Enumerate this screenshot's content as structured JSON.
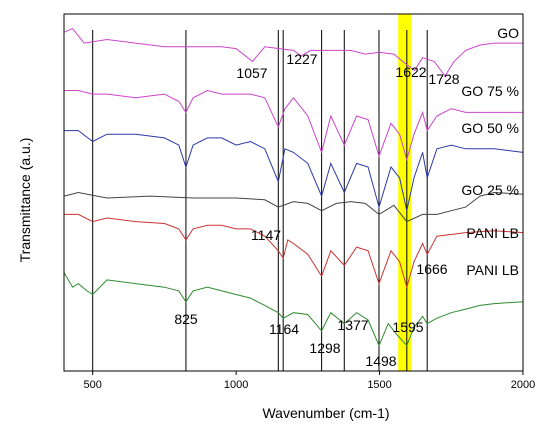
{
  "chart_data": {
    "type": "line",
    "xlabel": "Wavenumber (cm-1)",
    "ylabel": "Transmittance (a.u.)",
    "xlim": [
      400,
      2000
    ],
    "x_ticks": [
      500,
      1000,
      1500,
      2000
    ],
    "x_tick_labels": [
      "500",
      "1000",
      "1500",
      "2000"
    ],
    "y_ticks_shown": false,
    "grid": false,
    "highlight_band": {
      "x_range": [
        1565,
        1610
      ],
      "color": "#ffff00"
    },
    "reference_lines": [
      500,
      825,
      1147,
      1164,
      1298,
      1377,
      1498,
      1595,
      1666
    ],
    "series": [
      {
        "name": "GO",
        "color": "#cc44cc",
        "x": [
          400,
          430,
          470,
          550,
          650,
          750,
          850,
          950,
          1000,
          1057,
          1100,
          1150,
          1200,
          1227,
          1260,
          1300,
          1350,
          1400,
          1450,
          1500,
          1550,
          1580,
          1622,
          1650,
          1690,
          1728,
          1760,
          1800,
          1850,
          1900,
          1950,
          2000
        ],
        "y": [
          8.3,
          8.4,
          8.0,
          8.1,
          8.0,
          7.9,
          7.9,
          7.9,
          7.85,
          7.5,
          7.9,
          7.85,
          7.8,
          7.65,
          7.8,
          7.8,
          7.8,
          7.8,
          7.7,
          7.75,
          7.7,
          7.5,
          7.25,
          7.6,
          7.5,
          7.1,
          7.5,
          7.8,
          7.95,
          8.0,
          8.0,
          8.0
        ]
      },
      {
        "name": "GO 75 %",
        "color": "#cc44cc",
        "x": [
          400,
          450,
          500,
          550,
          650,
          750,
          800,
          825,
          850,
          900,
          950,
          1000,
          1050,
          1100,
          1147,
          1170,
          1200,
          1250,
          1298,
          1330,
          1377,
          1420,
          1460,
          1498,
          1540,
          1570,
          1595,
          1620,
          1650,
          1666,
          1700,
          1750,
          1800,
          1900,
          2000
        ],
        "y": [
          6.7,
          6.7,
          6.6,
          6.6,
          6.5,
          6.6,
          6.4,
          6.1,
          6.5,
          6.7,
          6.6,
          6.6,
          6.6,
          6.5,
          5.7,
          6.2,
          6.5,
          6.0,
          5.0,
          6.0,
          5.2,
          6.0,
          5.9,
          4.9,
          5.8,
          5.5,
          4.8,
          5.5,
          6.1,
          5.6,
          6.0,
          6.2,
          6.1,
          6.1,
          6.1
        ]
      },
      {
        "name": "GO 50 %",
        "color": "#2b3aa8",
        "x": [
          400,
          450,
          500,
          550,
          650,
          750,
          800,
          825,
          850,
          900,
          950,
          1000,
          1050,
          1100,
          1147,
          1170,
          1200,
          1250,
          1298,
          1330,
          1377,
          1420,
          1460,
          1498,
          1540,
          1570,
          1595,
          1620,
          1650,
          1666,
          1700,
          1750,
          1800,
          1900,
          2000
        ],
        "y": [
          5.6,
          5.6,
          5.3,
          5.5,
          5.5,
          5.4,
          5.2,
          4.6,
          5.2,
          5.4,
          5.4,
          5.2,
          5.3,
          5.1,
          4.2,
          5.1,
          5.0,
          4.7,
          3.8,
          4.7,
          3.9,
          4.7,
          4.6,
          3.5,
          4.6,
          4.3,
          3.4,
          4.3,
          5.0,
          4.3,
          5.1,
          5.2,
          5.1,
          5.1,
          5.0
        ]
      },
      {
        "name": "GO 25 %",
        "color": "#444444",
        "x": [
          400,
          450,
          550,
          700,
          850,
          1000,
          1100,
          1147,
          1200,
          1250,
          1298,
          1350,
          1400,
          1450,
          1498,
          1550,
          1595,
          1650,
          1700,
          1750,
          1800,
          1850,
          1900,
          2000
        ],
        "y": [
          3.8,
          3.9,
          3.75,
          3.8,
          3.75,
          3.75,
          3.7,
          3.5,
          3.65,
          3.6,
          3.4,
          3.6,
          3.65,
          3.6,
          3.3,
          3.55,
          3.1,
          3.3,
          3.3,
          3.4,
          3.5,
          3.8,
          3.9,
          3.85
        ]
      },
      {
        "name": "PANI LB",
        "color": "#cc3333",
        "x": [
          400,
          450,
          500,
          550,
          650,
          750,
          800,
          825,
          850,
          900,
          950,
          1000,
          1050,
          1100,
          1147,
          1164,
          1180,
          1200,
          1250,
          1298,
          1330,
          1377,
          1420,
          1460,
          1498,
          1540,
          1570,
          1595,
          1620,
          1650,
          1666,
          1700,
          1800,
          1900,
          2000
        ],
        "y": [
          3.3,
          3.3,
          3.1,
          3.2,
          3.1,
          3.05,
          2.9,
          2.6,
          2.9,
          3.0,
          3.0,
          2.9,
          2.9,
          2.7,
          2.3,
          2.1,
          2.6,
          2.5,
          2.2,
          1.6,
          2.3,
          1.9,
          2.4,
          2.3,
          1.4,
          2.3,
          2.0,
          1.3,
          2.0,
          2.5,
          2.2,
          2.7,
          2.8,
          2.85,
          2.8
        ]
      },
      {
        "name": "PANI LB",
        "color": "#2e8b2e",
        "x": [
          400,
          430,
          450,
          480,
          500,
          550,
          650,
          750,
          800,
          825,
          850,
          900,
          950,
          1000,
          1050,
          1100,
          1147,
          1164,
          1200,
          1250,
          1298,
          1330,
          1377,
          1420,
          1460,
          1498,
          1530,
          1560,
          1595,
          1620,
          1650,
          1666,
          1700,
          1750,
          1800,
          1850,
          1900,
          2000
        ],
        "y": [
          1.7,
          1.3,
          1.4,
          1.2,
          1.1,
          1.5,
          1.4,
          1.3,
          1.2,
          0.9,
          1.2,
          1.3,
          1.2,
          1.1,
          1.0,
          0.8,
          0.6,
          0.45,
          0.6,
          0.55,
          0.1,
          0.6,
          0.3,
          0.6,
          0.4,
          -0.3,
          0.3,
          0.0,
          -0.3,
          0.2,
          0.5,
          0.3,
          0.45,
          0.6,
          0.7,
          0.8,
          0.85,
          0.9
        ]
      }
    ],
    "series_labels": [
      "GO",
      "GO 75 %",
      "GO 50 %",
      "GO 25 %",
      "PANI LB",
      "PANI LB"
    ],
    "annotations": [
      {
        "text": "1057",
        "x": 1057
      },
      {
        "text": "1227",
        "x": 1227
      },
      {
        "text": "1622",
        "x": 1622
      },
      {
        "text": "1728",
        "x": 1728
      },
      {
        "text": "1147",
        "x": 1147
      },
      {
        "text": "1666",
        "x": 1666
      },
      {
        "text": "825",
        "x": 825
      },
      {
        "text": "1164",
        "x": 1164
      },
      {
        "text": "1298",
        "x": 1298
      },
      {
        "text": "1377",
        "x": 1377
      },
      {
        "text": "1595",
        "x": 1595
      },
      {
        "text": "1498",
        "x": 1498
      }
    ]
  }
}
